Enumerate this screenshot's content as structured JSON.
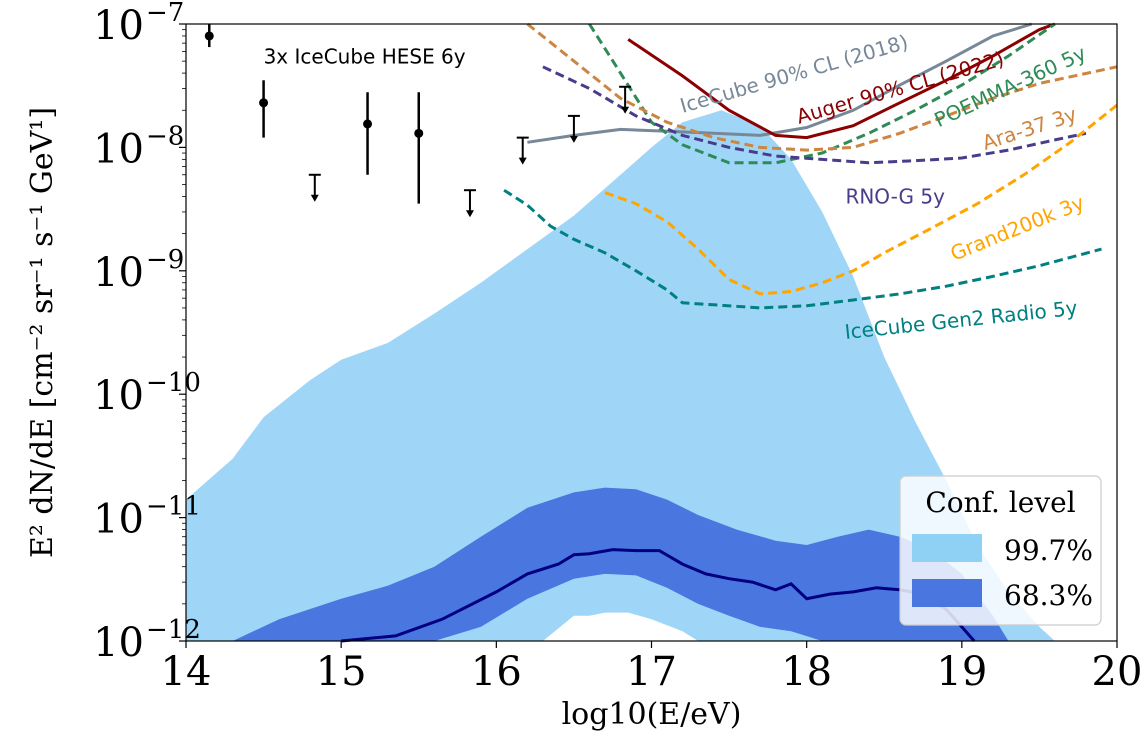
{
  "chart_data": {
    "type": "area",
    "x_scale": "linear",
    "y_scale": "log",
    "xlim": [
      14,
      20
    ],
    "ylim": [
      1e-12,
      1e-07
    ],
    "xticks": [
      "14",
      "15",
      "16",
      "17",
      "18",
      "19",
      "20"
    ],
    "yticks": [
      {
        "value": 1e-12,
        "base": "10",
        "exp": "−12"
      },
      {
        "value": 1e-11,
        "base": "10",
        "exp": "−11"
      },
      {
        "value": 1e-10,
        "base": "10",
        "exp": "−10"
      },
      {
        "value": 1e-09,
        "base": "10",
        "exp": "−9"
      },
      {
        "value": 1e-08,
        "base": "10",
        "exp": "−8"
      },
      {
        "value": 1e-07,
        "base": "10",
        "exp": "−7"
      }
    ],
    "xlabel": "log10(E/eV)",
    "ylabel": "E² dN/dE [cm⁻² sr⁻¹ s⁻¹ GeV¹]",
    "grid": false,
    "legend": {
      "title": "Conf. level",
      "placement": "lower-right",
      "entries": [
        {
          "label": "99.7%",
          "color": "#8fd0f5"
        },
        {
          "label": "68.3%",
          "color": "#4a76e0"
        }
      ]
    },
    "bands": [
      {
        "name": "99.7%",
        "color": "#9fd6f7",
        "upper": [
          [
            14.0,
            1.4e-11
          ],
          [
            14.3,
            3e-11
          ],
          [
            14.5,
            6.5e-11
          ],
          [
            14.8,
            1.3e-10
          ],
          [
            15.0,
            1.9e-10
          ],
          [
            15.3,
            2.6e-10
          ],
          [
            15.6,
            4.5e-10
          ],
          [
            15.9,
            8e-10
          ],
          [
            16.2,
            1.5e-09
          ],
          [
            16.5,
            2.8e-09
          ],
          [
            16.8,
            6e-09
          ],
          [
            17.0,
            1e-08
          ],
          [
            17.2,
            1.6e-08
          ],
          [
            17.45,
            2e-08
          ],
          [
            17.7,
            1.5e-08
          ],
          [
            17.9,
            8e-09
          ],
          [
            18.1,
            3e-09
          ],
          [
            18.3,
            9e-10
          ],
          [
            18.5,
            2e-10
          ],
          [
            18.7,
            6e-11
          ],
          [
            18.9,
            2e-11
          ],
          [
            19.1,
            6e-12
          ],
          [
            19.3,
            2.5e-12
          ],
          [
            19.5,
            1.3e-12
          ],
          [
            19.6,
            1e-12
          ]
        ],
        "lower": [
          [
            16.3,
            1e-12
          ],
          [
            16.5,
            1.6e-12
          ],
          [
            16.6,
            1.6e-12
          ],
          [
            16.7,
            1.7e-12
          ],
          [
            16.85,
            1.7e-12
          ],
          [
            17.0,
            1.5e-12
          ],
          [
            17.2,
            1.2e-12
          ],
          [
            17.3,
            1e-12
          ]
        ]
      },
      {
        "name": "68.3%",
        "color": "#4a76e0",
        "upper": [
          [
            14.3,
            1e-12
          ],
          [
            14.6,
            1.5e-12
          ],
          [
            15.0,
            2.2e-12
          ],
          [
            15.3,
            2.8e-12
          ],
          [
            15.6,
            4e-12
          ],
          [
            15.9,
            7e-12
          ],
          [
            16.2,
            1.2e-11
          ],
          [
            16.5,
            1.6e-11
          ],
          [
            16.7,
            1.75e-11
          ],
          [
            16.9,
            1.7e-11
          ],
          [
            17.1,
            1.4e-11
          ],
          [
            17.3,
            1.05e-11
          ],
          [
            17.55,
            8e-12
          ],
          [
            17.8,
            6.5e-12
          ],
          [
            18.0,
            6e-12
          ],
          [
            18.2,
            7e-12
          ],
          [
            18.4,
            8e-12
          ],
          [
            18.6,
            7e-12
          ],
          [
            18.8,
            5.5e-12
          ],
          [
            19.0,
            3.5e-12
          ],
          [
            19.2,
            1.6e-12
          ],
          [
            19.3,
            1e-12
          ]
        ],
        "lower": [
          [
            15.6,
            1e-12
          ],
          [
            15.9,
            1.3e-12
          ],
          [
            16.2,
            2.2e-12
          ],
          [
            16.5,
            3.2e-12
          ],
          [
            16.7,
            3.5e-12
          ],
          [
            16.9,
            3.4e-12
          ],
          [
            17.1,
            2.7e-12
          ],
          [
            17.3,
            2e-12
          ],
          [
            17.5,
            1.6e-12
          ],
          [
            17.7,
            1.3e-12
          ],
          [
            17.9,
            1.2e-12
          ],
          [
            18.1,
            1e-12
          ]
        ]
      }
    ],
    "series": [
      {
        "color": "#000080",
        "dash": "solid",
        "points": [
          [
            15.0,
            1e-12
          ],
          [
            15.35,
            1.1e-12
          ],
          [
            15.65,
            1.5e-12
          ],
          [
            16.0,
            2.5e-12
          ],
          [
            16.2,
            3.5e-12
          ],
          [
            16.4,
            4.2e-12
          ],
          [
            16.5,
            5e-12
          ],
          [
            16.6,
            5.1e-12
          ],
          [
            16.75,
            5.5e-12
          ],
          [
            16.9,
            5.4e-12
          ],
          [
            17.05,
            5.4e-12
          ],
          [
            17.2,
            4.2e-12
          ],
          [
            17.35,
            3.5e-12
          ],
          [
            17.5,
            3.2e-12
          ],
          [
            17.65,
            3e-12
          ],
          [
            17.8,
            2.6e-12
          ],
          [
            17.9,
            2.9e-12
          ],
          [
            18.0,
            2.2e-12
          ],
          [
            18.15,
            2.4e-12
          ],
          [
            18.3,
            2.5e-12
          ],
          [
            18.45,
            2.7e-12
          ],
          [
            18.6,
            2.6e-12
          ],
          [
            18.75,
            2.4e-12
          ],
          [
            18.9,
            1.8e-12
          ],
          [
            19.0,
            1.3e-12
          ],
          [
            19.08,
            1e-12
          ]
        ]
      },
      {
        "name": "IceCube 90% CL (2018)",
        "color": "#778899",
        "dash": "solid",
        "points": [
          [
            16.2,
            1.1e-08
          ],
          [
            16.5,
            1.25e-08
          ],
          [
            16.8,
            1.4e-08
          ],
          [
            17.1,
            1.35e-08
          ],
          [
            17.4,
            1.3e-08
          ],
          [
            17.7,
            1.25e-08
          ],
          [
            18.0,
            1.45e-08
          ],
          [
            18.3,
            2e-08
          ],
          [
            18.6,
            3.2e-08
          ],
          [
            18.9,
            5e-08
          ],
          [
            19.2,
            8e-08
          ],
          [
            19.45,
            1e-07
          ]
        ]
      },
      {
        "name": "Auger 90% CL (2022)",
        "color": "#8b0000",
        "dash": "solid",
        "points": [
          [
            16.85,
            7.5e-08
          ],
          [
            17.2,
            3.8e-08
          ],
          [
            17.5,
            2e-08
          ],
          [
            17.8,
            1.25e-08
          ],
          [
            18.0,
            1.2e-08
          ],
          [
            18.3,
            1.5e-08
          ],
          [
            18.6,
            2.3e-08
          ],
          [
            18.9,
            3.5e-08
          ],
          [
            19.2,
            5.5e-08
          ],
          [
            19.5,
            9e-08
          ],
          [
            19.6,
            1e-07
          ]
        ]
      },
      {
        "name": "POEMMA-360 5y",
        "color": "#2e8b57",
        "dash": "dashed",
        "points": [
          [
            16.6,
            1e-07
          ],
          [
            16.8,
            4e-08
          ],
          [
            17.0,
            1.6e-08
          ],
          [
            17.2,
            1.05e-08
          ],
          [
            17.5,
            7.5e-09
          ],
          [
            17.8,
            7.5e-09
          ],
          [
            18.1,
            9e-09
          ],
          [
            18.4,
            1.3e-08
          ],
          [
            18.7,
            2e-08
          ],
          [
            19.0,
            3.2e-08
          ],
          [
            19.3,
            5.5e-08
          ],
          [
            19.6,
            1e-07
          ]
        ]
      },
      {
        "name": "Ara-37 3y",
        "color": "#cd853f",
        "dash": "dashed",
        "points": [
          [
            16.2,
            1e-07
          ],
          [
            16.5,
            5e-08
          ],
          [
            16.8,
            2.5e-08
          ],
          [
            17.1,
            1.6e-08
          ],
          [
            17.4,
            1.2e-08
          ],
          [
            17.7,
            1e-08
          ],
          [
            18.0,
            9.5e-09
          ],
          [
            18.3,
            1e-08
          ],
          [
            18.6,
            1.3e-08
          ],
          [
            18.9,
            1.8e-08
          ],
          [
            19.2,
            2.5e-08
          ],
          [
            19.5,
            3.3e-08
          ],
          [
            20.0,
            4.5e-08
          ]
        ]
      },
      {
        "name": "RNO-G 5y",
        "color": "#483d8b",
        "dash": "dashed",
        "points": [
          [
            16.3,
            4.5e-08
          ],
          [
            16.6,
            3e-08
          ],
          [
            16.9,
            1.8e-08
          ],
          [
            17.2,
            1.25e-08
          ],
          [
            17.5,
            1e-08
          ],
          [
            17.8,
            8.5e-09
          ],
          [
            18.1,
            8e-09
          ],
          [
            18.4,
            7.5e-09
          ],
          [
            18.7,
            7.8e-09
          ],
          [
            19.0,
            8.2e-09
          ],
          [
            19.3,
            9.5e-09
          ],
          [
            19.6,
            1.15e-08
          ],
          [
            19.8,
            1.3e-08
          ]
        ]
      },
      {
        "name": "Grand200k 3y",
        "color": "#ffa500",
        "dash": "dashed",
        "points": [
          [
            16.7,
            4.3e-09
          ],
          [
            16.9,
            3.5e-09
          ],
          [
            17.1,
            2.5e-09
          ],
          [
            17.3,
            1.5e-09
          ],
          [
            17.5,
            8.5e-10
          ],
          [
            17.7,
            6.5e-10
          ],
          [
            17.9,
            6.8e-10
          ],
          [
            18.1,
            8e-10
          ],
          [
            18.3,
            1e-09
          ],
          [
            18.5,
            1.4e-09
          ],
          [
            18.8,
            2.2e-09
          ],
          [
            19.1,
            3.5e-09
          ],
          [
            19.4,
            6e-09
          ],
          [
            19.7,
            1.1e-08
          ],
          [
            20.0,
            2.2e-08
          ]
        ]
      },
      {
        "name": "IceCube Gen2 Radio 5y",
        "color": "#008080",
        "dash": "dashed",
        "points": [
          [
            16.05,
            4.5e-09
          ],
          [
            16.2,
            3.4e-09
          ],
          [
            16.35,
            2.3e-09
          ],
          [
            16.5,
            1.8e-09
          ],
          [
            16.7,
            1.4e-09
          ],
          [
            16.9,
            1e-09
          ],
          [
            17.1,
            7e-10
          ],
          [
            17.2,
            5.5e-10
          ],
          [
            17.4,
            5.3e-10
          ],
          [
            17.7,
            5e-10
          ],
          [
            18.0,
            5.2e-10
          ],
          [
            18.3,
            5.8e-10
          ],
          [
            18.6,
            6.5e-10
          ],
          [
            18.9,
            7.5e-10
          ],
          [
            19.2,
            9e-10
          ],
          [
            19.5,
            1.1e-09
          ],
          [
            19.9,
            1.5e-09
          ]
        ]
      }
    ],
    "measurements": {
      "label": "3x IceCube HESE 6y",
      "points": [
        {
          "x": 14.15,
          "y": 8e-08,
          "lo": 6.5e-08,
          "hi": 1e-07
        },
        {
          "x": 14.5,
          "y": 2.3e-08,
          "lo": 1.2e-08,
          "hi": 3.5e-08
        },
        {
          "x": 15.17,
          "y": 1.55e-08,
          "lo": 6e-09,
          "hi": 2.8e-08
        },
        {
          "x": 15.5,
          "y": 1.3e-08,
          "lo": 3.5e-09,
          "hi": 2.8e-08
        }
      ],
      "upper_limits": [
        {
          "x": 14.83,
          "y": 6e-09
        },
        {
          "x": 15.83,
          "y": 4.5e-09
        },
        {
          "x": 16.17,
          "y": 1.2e-08
        },
        {
          "x": 16.5,
          "y": 1.8e-08
        },
        {
          "x": 16.83,
          "y": 3.1e-08
        }
      ]
    },
    "annotations": [
      {
        "text": "3x IceCube HESE 6y",
        "x": 14.5,
        "y": 4.8e-08,
        "rotate": 0,
        "color": "#000000"
      },
      {
        "text": "IceCube 90% CL (2018)",
        "x": 17.2,
        "y": 1.9e-08,
        "rotate": -16,
        "color": "#778899"
      },
      {
        "text": "Auger 90% CL (2022)",
        "x": 17.95,
        "y": 1.55e-08,
        "rotate": -16,
        "color": "#8b0000"
      },
      {
        "text": "POEMMA-360 5y",
        "x": 18.85,
        "y": 1.45e-08,
        "rotate": -25,
        "color": "#2e8b57"
      },
      {
        "text": "Ara-37 3y",
        "x": 19.15,
        "y": 9.5e-09,
        "rotate": -18,
        "color": "#cd853f"
      },
      {
        "text": "RNO-G 5y",
        "x": 18.25,
        "y": 3.5e-09,
        "rotate": 0,
        "color": "#483d8b"
      },
      {
        "text": "Grand200k 3y",
        "x": 18.95,
        "y": 1.2e-09,
        "rotate": -22,
        "color": "#ffa500"
      },
      {
        "text": "IceCube Gen2 Radio 5y",
        "x": 18.25,
        "y": 2.8e-10,
        "rotate": -6,
        "color": "#008080"
      }
    ]
  }
}
